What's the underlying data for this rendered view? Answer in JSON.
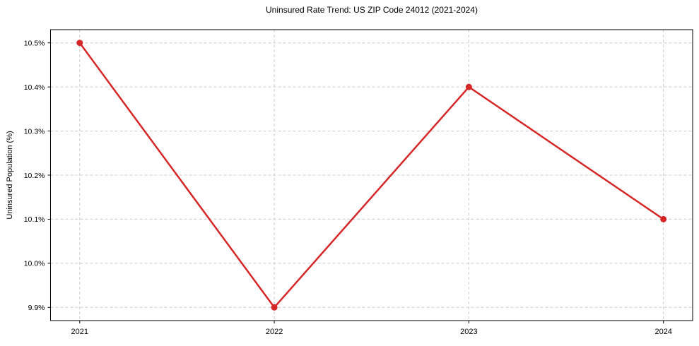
{
  "chart_data": {
    "type": "line",
    "title": "Uninsured Rate Trend: US ZIP Code 24012 (2021-2024)",
    "xlabel": "",
    "ylabel": "Uninsured Population (%)",
    "x": [
      2021,
      2022,
      2023,
      2024
    ],
    "values": [
      10.5,
      9.9,
      10.4,
      10.1
    ],
    "x_tick_labels": [
      "2021",
      "2022",
      "2023",
      "2024"
    ],
    "y_ticks": [
      9.9,
      10.0,
      10.1,
      10.2,
      10.3,
      10.4,
      10.5
    ],
    "y_tick_labels": [
      "9.9%",
      "10.0%",
      "10.1%",
      "10.2%",
      "10.3%",
      "10.4%",
      "10.5%"
    ],
    "xlim": [
      2020.85,
      2024.15
    ],
    "ylim": [
      9.87,
      10.53
    ],
    "grid": true,
    "grid_style": "dashed",
    "legend": "none",
    "colors": {
      "line": "#d62728",
      "marker": "#d62728",
      "grid": "#cccccc",
      "spine": "#000000",
      "text": "#000000",
      "background": "#ffffff"
    }
  }
}
